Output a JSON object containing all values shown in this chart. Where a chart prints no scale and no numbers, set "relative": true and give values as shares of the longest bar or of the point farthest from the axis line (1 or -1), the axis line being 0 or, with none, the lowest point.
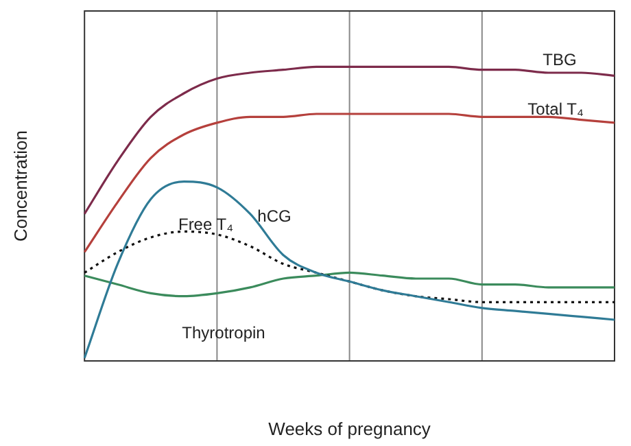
{
  "chart_data": {
    "type": "line",
    "relative": true,
    "xlabel": "Weeks of pregnancy",
    "ylabel": "Concentration",
    "grid": "x",
    "legend": false,
    "marker": "none",
    "categories": [
      null,
      null,
      null,
      null,
      null,
      null,
      null,
      null,
      null,
      null,
      null,
      null,
      null,
      null,
      null,
      null,
      null
    ],
    "series": [
      {
        "name": "TBG",
        "color": "#7d2b4b",
        "values": [
          0.5,
          0.68,
          0.83,
          0.91,
          0.96,
          0.98,
          0.99,
          1.0,
          1,
          1,
          1.0,
          1.0,
          0.99,
          0.99,
          0.98,
          0.98,
          0.97
        ]
      },
      {
        "name": "Total T₄",
        "color": "#b5403c",
        "values": [
          0.37,
          0.54,
          0.69,
          0.77,
          0.81,
          0.83,
          0.83,
          0.84,
          0.84,
          0.84,
          0.84,
          0.84,
          0.83,
          0.83,
          0.83,
          0.82,
          0.81
        ]
      },
      {
        "name": "hCG",
        "color": "#2f7b96",
        "values": [
          0.01,
          0.33,
          0.55,
          0.61,
          0.59,
          0.5,
          0.36,
          0.3,
          0.27,
          0.24,
          0.22,
          0.2,
          0.18,
          0.17,
          0.16,
          0.15,
          0.14
        ]
      },
      {
        "name": "Free T₄",
        "color": "#111111",
        "line_style": "dotted",
        "values": [
          0.3,
          0.37,
          0.42,
          0.44,
          0.43,
          0.39,
          0.33,
          0.3,
          0.27,
          0.24,
          0.22,
          0.21,
          0.2,
          0.2,
          0.2,
          0.2,
          0.2
        ]
      },
      {
        "name": "Thyrotropin",
        "color": "#3b8b5c",
        "values": [
          0.29,
          0.26,
          0.23,
          0.22,
          0.23,
          0.25,
          0.28,
          0.29,
          0.3,
          0.29,
          0.28,
          0.28,
          0.26,
          0.26,
          0.25,
          0.25,
          0.25
        ]
      }
    ]
  }
}
